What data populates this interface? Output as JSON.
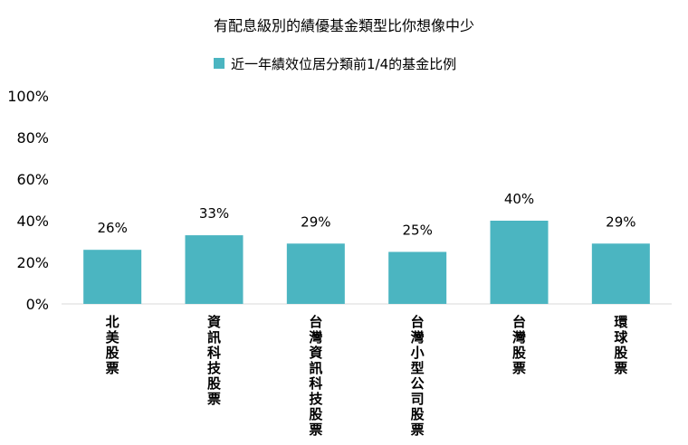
{
  "chart_data": {
    "type": "bar",
    "title": "有配息級別的績優基金類型比你想像中少",
    "categories": [
      "北美股票",
      "資訊科技股票",
      "台灣資訊科技股票",
      "台灣小型公司股票",
      "台灣股票",
      "環球股票"
    ],
    "series": [
      {
        "name": "近一年績效位居分類前1/4的基金比例",
        "values": [
          26,
          33,
          29,
          25,
          40,
          29
        ],
        "color": "#4bb5c1"
      }
    ],
    "data_labels": [
      "26%",
      "33%",
      "29%",
      "25%",
      "40%",
      "29%"
    ],
    "y_ticks": [
      "0%",
      "20%",
      "40%",
      "60%",
      "80%",
      "100%"
    ],
    "ylim": [
      0,
      100
    ],
    "unit": "%",
    "grid": false,
    "legend_position": "top"
  }
}
